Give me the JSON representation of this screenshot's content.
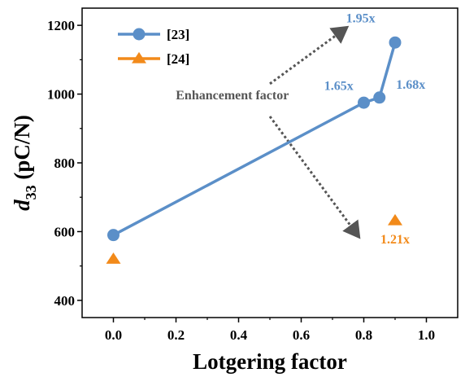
{
  "chart_data": {
    "type": "line",
    "xlabel": "Lotgering factor",
    "ylabel_main": "d",
    "ylabel_sub": "33",
    "ylabel_rest": " (pC/N)",
    "xlim": [
      -0.1,
      1.1
    ],
    "ylim": [
      350,
      1250
    ],
    "xticks": [
      0.0,
      0.2,
      0.4,
      0.6,
      0.8,
      1.0
    ],
    "xtick_labels": [
      "0.0",
      "0.2",
      "0.4",
      "0.6",
      "0.8",
      "1.0"
    ],
    "yticks": [
      400,
      600,
      800,
      1000,
      1200
    ],
    "ytick_labels": [
      "400",
      "600",
      "800",
      "1000",
      "1200"
    ],
    "grid": false,
    "legend_position": "top-left",
    "series": [
      {
        "name": "[23]",
        "marker": "circle",
        "color": "#5b8fc8",
        "line": true,
        "points": [
          {
            "x": 0.0,
            "y": 590
          },
          {
            "x": 0.8,
            "y": 975
          },
          {
            "x": 0.85,
            "y": 990
          },
          {
            "x": 0.9,
            "y": 1150
          }
        ]
      },
      {
        "name": "[24]",
        "marker": "triangle",
        "color": "#f28a1a",
        "line": false,
        "points": [
          {
            "x": 0.0,
            "y": 520
          },
          {
            "x": 0.9,
            "y": 632
          }
        ]
      }
    ],
    "annotations": [
      {
        "text": "Enhancement factor",
        "color": "#555555",
        "x": 0.38,
        "y": 985
      },
      {
        "text": "1.65x",
        "color": "#5b8fc8",
        "x": 0.72,
        "y": 1012
      },
      {
        "text": "1.68x",
        "color": "#5b8fc8",
        "x": 0.95,
        "y": 1015
      },
      {
        "text": "1.95x",
        "color": "#5b8fc8",
        "x": 0.79,
        "y": 1208
      },
      {
        "text": "1.21x",
        "color": "#f28a1a",
        "x": 0.9,
        "y": 565
      }
    ],
    "arrows": [
      {
        "from": [
          0.5,
          1030
        ],
        "to": [
          0.74,
          1190
        ]
      },
      {
        "from": [
          0.5,
          935
        ],
        "to": [
          0.78,
          590
        ]
      }
    ]
  }
}
